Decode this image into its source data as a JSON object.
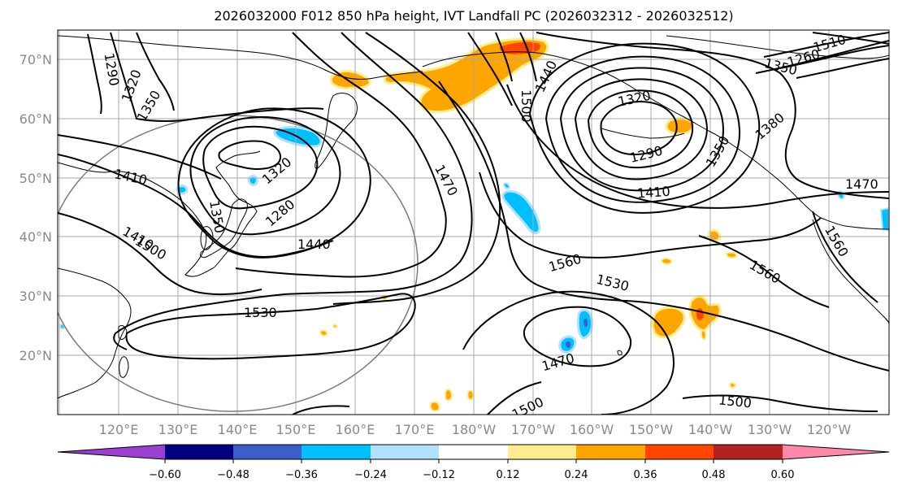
{
  "title": "2026032000 F012 850 hPa height, IVT Landfall PC (2026032312 - 2026032512)",
  "latitude_labels": [
    "70°N",
    "60°N",
    "50°N",
    "40°N",
    "30°N",
    "20°N"
  ],
  "longitude_labels": [
    "120°E",
    "130°E",
    "140°E",
    "150°E",
    "160°E",
    "170°E",
    "180°W",
    "170°W",
    "160°W",
    "150°W",
    "140°W",
    "130°W",
    "120°W"
  ],
  "contour_labels": [
    "1290",
    "1320",
    "1350",
    "1410",
    "1350",
    "1320",
    "1280",
    "1410",
    "1500",
    "1440",
    "1530",
    "1470",
    "1440",
    "1500",
    "1320",
    "1290",
    "1350",
    "1380",
    "1410",
    "1470",
    "1560",
    "1530",
    "1560",
    "1560",
    "1470",
    "1500",
    "1500",
    "1510",
    "1260",
    "1350"
  ],
  "colorbar": {
    "ticks": [
      "−0.60",
      "−0.48",
      "−0.36",
      "−0.24",
      "−0.12",
      "0.12",
      "0.24",
      "0.36",
      "0.48",
      "0.60"
    ],
    "colors": [
      "#9b3fd0",
      "#000080",
      "#3a5fcd",
      "#00bfff",
      "#b0e2ff",
      "#ffffff",
      "#ffec8b",
      "#ffa500",
      "#ff4500",
      "#b22222",
      "#ff88aa"
    ]
  },
  "map_colors": {
    "positive_light": "#ffec8b",
    "positive_mid": "#ffa500",
    "positive_high": "#ff4500",
    "negative_light": "#b0e2ff",
    "negative_mid": "#00bfff",
    "negative_high": "#3a5fcd"
  }
}
